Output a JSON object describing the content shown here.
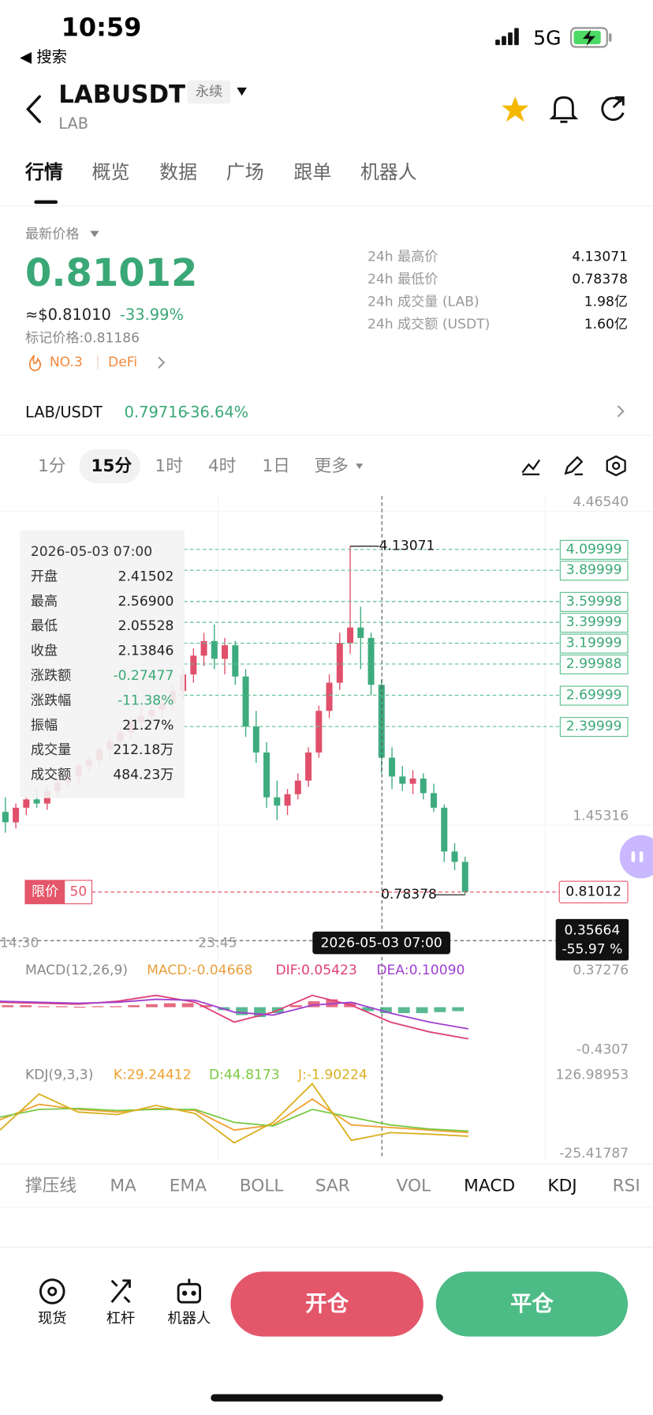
{
  "status_bar": {
    "time": "10:59",
    "back": "◀ 搜索",
    "network": "5G"
  },
  "header": {
    "symbol": "LABUSDT",
    "badge": "永续",
    "base": "LAB"
  },
  "tabs": [
    "行情",
    "概览",
    "数据",
    "广场",
    "跟单",
    "机器人"
  ],
  "price": {
    "label": "最新价格",
    "last": "0.81012",
    "usd": "≈$0.81010",
    "change": "-33.99%",
    "mark": "标记价格:0.81186",
    "rank": "NO.3",
    "tag": "DeFi"
  },
  "stats": [
    [
      "24h 最高价",
      "4.13071"
    ],
    [
      "24h 最低价",
      "0.78378"
    ],
    [
      "24h 成交量 (LAB)",
      "1.98亿"
    ],
    [
      "24h 成交额 (USDT)",
      "1.60亿"
    ]
  ],
  "pair": {
    "name": "LAB/USDT",
    "price": "0.79716",
    "change": "-36.64%"
  },
  "intervals": [
    "1分",
    "15分",
    "1时",
    "4时",
    "1日",
    "更多"
  ],
  "kline": {
    "type": "candlestick",
    "ylim": [
      0.37,
      4.4654
    ],
    "yticks": [
      {
        "value": 4.4654,
        "label": "4.46540"
      },
      1.45316
    ],
    "colors": {
      "up": "#e0506b",
      "down": "#3dab7e"
    },
    "candles": [
      [
        1.58,
        1.72,
        1.38,
        1.48
      ],
      [
        1.48,
        1.66,
        1.42,
        1.62
      ],
      [
        1.62,
        1.74,
        1.55,
        1.7
      ],
      [
        1.7,
        1.8,
        1.62,
        1.66
      ],
      [
        1.66,
        1.82,
        1.6,
        1.78
      ],
      [
        1.78,
        1.9,
        1.72,
        1.86
      ],
      [
        1.86,
        1.98,
        1.8,
        1.92
      ],
      [
        1.92,
        2.05,
        1.85,
        2.02
      ],
      [
        2.02,
        2.12,
        1.95,
        2.08
      ],
      [
        2.08,
        2.22,
        2.02,
        2.18
      ],
      [
        2.18,
        2.3,
        2.1,
        2.26
      ],
      [
        2.26,
        2.4,
        2.2,
        2.34
      ],
      [
        2.34,
        2.48,
        2.28,
        2.44
      ],
      [
        2.44,
        2.58,
        2.36,
        2.5
      ],
      [
        2.5,
        2.62,
        2.42,
        2.56
      ],
      [
        2.56,
        2.7,
        2.48,
        2.62
      ],
      [
        2.62,
        2.8,
        2.55,
        2.74
      ],
      [
        2.74,
        2.95,
        2.66,
        2.9
      ],
      [
        2.9,
        3.15,
        2.82,
        3.08
      ],
      [
        3.08,
        3.3,
        2.98,
        3.22
      ],
      [
        3.22,
        3.38,
        2.95,
        3.05
      ],
      [
        3.05,
        3.25,
        2.9,
        3.18
      ],
      [
        3.18,
        3.22,
        2.8,
        2.88
      ],
      [
        2.88,
        2.95,
        2.3,
        2.4
      ],
      [
        2.4,
        2.55,
        2.05,
        2.15
      ],
      [
        2.15,
        2.25,
        1.62,
        1.72
      ],
      [
        1.72,
        1.88,
        1.5,
        1.64
      ],
      [
        1.64,
        1.8,
        1.55,
        1.75
      ],
      [
        1.75,
        1.95,
        1.7,
        1.88
      ],
      [
        1.88,
        2.2,
        1.82,
        2.15
      ],
      [
        2.15,
        2.6,
        2.1,
        2.55
      ],
      [
        2.55,
        2.9,
        2.48,
        2.82
      ],
      [
        2.82,
        3.3,
        2.75,
        3.2
      ],
      [
        3.2,
        4.13071,
        3.1,
        3.35
      ],
      [
        3.35,
        3.55,
        2.95,
        3.25
      ],
      [
        3.25,
        3.3,
        2.7,
        2.8
      ],
      [
        2.8,
        2.85,
        1.95,
        2.1
      ],
      [
        2.1,
        2.2,
        1.8,
        1.92
      ],
      [
        1.92,
        2.02,
        1.78,
        1.85
      ],
      [
        1.85,
        1.98,
        1.75,
        1.9
      ],
      [
        1.9,
        1.95,
        1.7,
        1.76
      ],
      [
        1.76,
        1.85,
        1.58,
        1.62
      ],
      [
        1.62,
        1.65,
        1.1,
        1.2
      ],
      [
        1.2,
        1.28,
        1.02,
        1.1
      ],
      [
        1.1,
        1.15,
        0.78378,
        0.81012
      ]
    ],
    "high": 4.13071,
    "low": 0.78378,
    "last": 0.81012,
    "levels": [
      4.09999,
      3.89999,
      3.59998,
      3.39999,
      3.19999,
      2.99988,
      2.69999,
      2.39999
    ],
    "order": {
      "type": "限价",
      "qty": "50"
    },
    "crosshair": {
      "time": "2026-05-03 07:00",
      "value": "0.35664",
      "change": "-55.97 %"
    },
    "xlabels": [
      "14:30",
      "23:45"
    ],
    "tooltip": [
      [
        "2026-05-03 07:00",
        ""
      ],
      [
        "开盘",
        "2.41502"
      ],
      [
        "最高",
        "2.56900"
      ],
      [
        "最低",
        "2.05528"
      ],
      [
        "收盘",
        "2.13846"
      ],
      [
        "涨跌额",
        "-0.27477"
      ],
      [
        "涨跌幅",
        "-11.38%"
      ],
      [
        "振幅",
        "21.27%"
      ],
      [
        "成交量",
        "212.18万"
      ],
      [
        "成交额",
        "484.23万"
      ]
    ]
  },
  "macd": {
    "label": "MACD(12,26,9)",
    "macd": "MACD:-0.04668",
    "dif_label": "DIF:0.05423",
    "dea_label": "DEA:0.10090",
    "macd_color": "#e8a040",
    "dif_color": "#e0407a",
    "dea_color": "#a040d0",
    "ylim": [
      -0.4307,
      0.37276
    ],
    "yticks": [
      0.37276,
      -0.4307
    ],
    "dif": [
      0.05,
      0.04,
      0.03,
      0.06,
      0.12,
      0.05,
      -0.15,
      -0.05,
      0.12,
      0.02,
      -0.15,
      -0.25,
      -0.32
    ],
    "dea": [
      0.06,
      0.05,
      0.04,
      0.05,
      0.08,
      0.07,
      -0.05,
      -0.08,
      0.02,
      0.05,
      -0.06,
      -0.15,
      -0.22
    ],
    "histogram": [
      0.02,
      0.02,
      0.01,
      0.01,
      0.005,
      0.01,
      0.01,
      0.02,
      0.03,
      0.04,
      0.04,
      0.02,
      -0.03,
      -0.08,
      -0.1,
      -0.06,
      0.02,
      0.06,
      0.08,
      0.05,
      -0.04,
      -0.06,
      -0.06,
      -0.06,
      -0.05,
      -0.04
    ]
  },
  "kdj": {
    "label": "KDJ(9,3,3)",
    "k_label": "K:29.24412",
    "d_label": "D:44.8173",
    "j_label": "J:-1.90224",
    "k_color": "#f0a030",
    "d_color": "#7ac943",
    "j_color": "#d9b020",
    "ylim": [
      -25.41787,
      126.98953
    ],
    "yticks": [
      126.98953,
      -25.41787
    ],
    "k": [
      40,
      70,
      60,
      55,
      62,
      58,
      20,
      30,
      80,
      30,
      25,
      20,
      15
    ],
    "d": [
      45,
      60,
      62,
      58,
      60,
      60,
      35,
      28,
      60,
      45,
      30,
      22,
      18
    ],
    "j": [
      20,
      90,
      55,
      50,
      68,
      52,
      -5,
      35,
      110,
      0,
      15,
      12,
      8
    ]
  },
  "indicators": [
    {
      "name": "撑压线",
      "active": false
    },
    {
      "name": "MA",
      "active": false
    },
    {
      "name": "EMA",
      "active": false
    },
    {
      "name": "BOLL",
      "active": false
    },
    {
      "name": "SAR",
      "active": false
    },
    {
      "name": "VOL",
      "active": false
    },
    {
      "name": "MACD",
      "active": true
    },
    {
      "name": "KDJ",
      "active": true
    },
    {
      "name": "RSI",
      "active": false
    }
  ],
  "nav": [
    "现货",
    "杠杆",
    "机器人"
  ],
  "actions": {
    "open": "开仓",
    "close": "平仓"
  }
}
